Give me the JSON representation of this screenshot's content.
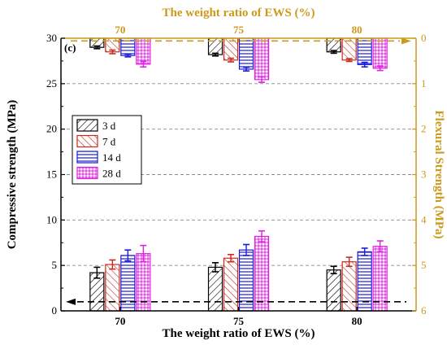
{
  "chart_data": {
    "type": "bar",
    "panel_label": "(c)",
    "categories": [
      "70",
      "75",
      "80"
    ],
    "xlabel": "The weight ratio of EWS (%)",
    "top_xlabel": "The weight ratio of EWS (%)",
    "ylabel_left": "Compressive strength (MPa)",
    "ylabel_right": "Flexural Strength (MPa)",
    "ylim_left": [
      0,
      30
    ],
    "yticks_left": [
      "0",
      "5",
      "10",
      "15",
      "20",
      "25",
      "30"
    ],
    "ylim_right_inverted": [
      0,
      6
    ],
    "yticks_right": [
      "0",
      "1",
      "2",
      "3",
      "4",
      "5",
      "6"
    ],
    "legend": [
      "3 d",
      "7 d",
      "14 d",
      "28 d"
    ],
    "legend_position": "upper-left",
    "series_colors": [
      "#000000",
      "#cc2a1e",
      "#1a1adb",
      "#e020e0"
    ],
    "axis_right_color": "#cc9a1a",
    "compressive_series": [
      {
        "name": "3 d",
        "values": [
          4.2,
          4.8,
          4.5
        ],
        "errors": [
          0.6,
          0.5,
          0.4
        ]
      },
      {
        "name": "7 d",
        "values": [
          5.1,
          5.8,
          5.4
        ],
        "errors": [
          0.5,
          0.4,
          0.5
        ]
      },
      {
        "name": "14 d",
        "values": [
          6.1,
          6.7,
          6.5
        ],
        "errors": [
          0.6,
          0.6,
          0.4
        ]
      },
      {
        "name": "28 d",
        "values": [
          6.3,
          8.2,
          7.1
        ],
        "errors": [
          0.9,
          0.6,
          0.6
        ]
      }
    ],
    "flexural_series": [
      {
        "name": "3 d",
        "values": [
          0.2,
          0.36,
          0.3
        ],
        "errors": [
          0.03,
          0.03,
          0.03
        ]
      },
      {
        "name": "7 d",
        "values": [
          0.3,
          0.48,
          0.48
        ],
        "errors": [
          0.04,
          0.04,
          0.03
        ]
      },
      {
        "name": "14 d",
        "values": [
          0.38,
          0.68,
          0.58
        ],
        "errors": [
          0.03,
          0.04,
          0.05
        ]
      },
      {
        "name": "28 d",
        "values": [
          0.57,
          0.91,
          0.66
        ],
        "errors": [
          0.06,
          0.06,
          0.05
        ]
      }
    ]
  }
}
